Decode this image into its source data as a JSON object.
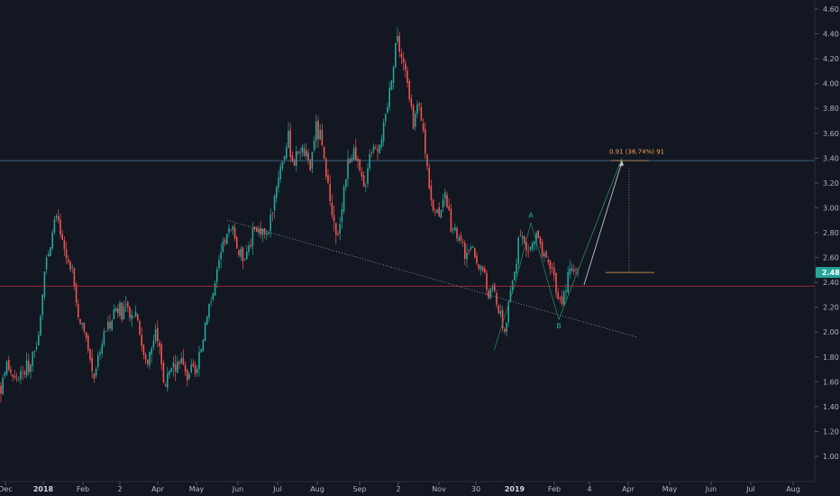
{
  "colors": {
    "background": "#131722",
    "up": "#26a69a",
    "down": "#ef5350",
    "resistance": "#4a7a9c",
    "support": "#b7323a",
    "trendline": "#9aa0ad",
    "projection_up": "#2a8f5a",
    "projection_line": "#c0c3cc",
    "target_text": "#f0a050",
    "price_badge": "#26a69a"
  },
  "chart_data": {
    "type": "candlestick",
    "title": "",
    "xlabel": "",
    "ylabel": "",
    "ylim": [
      0.9,
      4.7
    ],
    "grid": false,
    "y_ticks": [
      "1.00",
      "1.20",
      "1.40",
      "1.60",
      "1.80",
      "2.00",
      "2.20",
      "2.40",
      "2.60",
      "2.80",
      "3.00",
      "3.20",
      "3.40",
      "3.60",
      "3.80",
      "4.00",
      "4.20",
      "4.40",
      "4.60"
    ],
    "x_ticks": [
      {
        "label": "Dec",
        "bold": false
      },
      {
        "label": "2018",
        "bold": true
      },
      {
        "label": "Feb",
        "bold": false
      },
      {
        "label": "2",
        "bold": false
      },
      {
        "label": "Apr",
        "bold": false
      },
      {
        "label": "May",
        "bold": false
      },
      {
        "label": "Jun",
        "bold": false
      },
      {
        "label": "Jul",
        "bold": false
      },
      {
        "label": "Aug",
        "bold": false
      },
      {
        "label": "Sep",
        "bold": false
      },
      {
        "label": "2",
        "bold": false
      },
      {
        "label": "Nov",
        "bold": false
      },
      {
        "label": "30",
        "bold": false
      },
      {
        "label": "2019",
        "bold": true
      },
      {
        "label": "Feb",
        "bold": false
      },
      {
        "label": "4",
        "bold": false
      },
      {
        "label": "Apr",
        "bold": false
      },
      {
        "label": "May",
        "bold": false
      },
      {
        "label": "Jun",
        "bold": false
      },
      {
        "label": "Jul",
        "bold": false
      },
      {
        "label": "Aug",
        "bold": false
      }
    ],
    "last_price": "2.48",
    "price_path": [
      [
        0,
        1.55
      ],
      [
        8,
        1.75
      ],
      [
        16,
        1.62
      ],
      [
        24,
        1.66
      ],
      [
        30,
        1.72
      ],
      [
        38,
        1.78
      ],
      [
        44,
        2.1
      ],
      [
        50,
        2.55
      ],
      [
        56,
        2.65
      ],
      [
        62,
        2.95
      ],
      [
        68,
        2.72
      ],
      [
        74,
        2.6
      ],
      [
        80,
        2.5
      ],
      [
        86,
        2.15
      ],
      [
        92,
        2.0
      ],
      [
        98,
        1.85
      ],
      [
        104,
        1.65
      ],
      [
        110,
        1.85
      ],
      [
        116,
        2.0
      ],
      [
        122,
        2.1
      ],
      [
        128,
        2.2
      ],
      [
        134,
        2.18
      ],
      [
        140,
        2.15
      ],
      [
        146,
        2.12
      ],
      [
        152,
        2.18
      ],
      [
        158,
        1.85
      ],
      [
        164,
        1.75
      ],
      [
        170,
        1.95
      ],
      [
        176,
        2.0
      ],
      [
        182,
        1.55
      ],
      [
        188,
        1.65
      ],
      [
        194,
        1.72
      ],
      [
        200,
        1.8
      ],
      [
        206,
        1.65
      ],
      [
        212,
        1.7
      ],
      [
        218,
        1.65
      ],
      [
        224,
        1.9
      ],
      [
        230,
        2.2
      ],
      [
        236,
        2.3
      ],
      [
        242,
        2.5
      ],
      [
        248,
        2.72
      ],
      [
        254,
        2.8
      ],
      [
        260,
        2.78
      ],
      [
        266,
        2.6
      ],
      [
        272,
        2.62
      ],
      [
        278,
        2.75
      ],
      [
        284,
        2.8
      ],
      [
        290,
        2.85
      ],
      [
        296,
        2.75
      ],
      [
        302,
        3.0
      ],
      [
        308,
        3.25
      ],
      [
        314,
        3.4
      ],
      [
        320,
        3.55
      ],
      [
        326,
        3.35
      ],
      [
        332,
        3.5
      ],
      [
        338,
        3.45
      ],
      [
        344,
        3.3
      ],
      [
        350,
        3.65
      ],
      [
        356,
        3.55
      ],
      [
        362,
        3.2
      ],
      [
        368,
        2.95
      ],
      [
        374,
        2.7
      ],
      [
        380,
        3.1
      ],
      [
        386,
        3.35
      ],
      [
        392,
        3.45
      ],
      [
        398,
        3.3
      ],
      [
        404,
        3.15
      ],
      [
        410,
        3.45
      ],
      [
        416,
        3.5
      ],
      [
        422,
        3.55
      ],
      [
        428,
        3.7
      ],
      [
        434,
        4.05
      ],
      [
        440,
        4.4
      ],
      [
        446,
        4.2
      ],
      [
        452,
        4.0
      ],
      [
        458,
        3.7
      ],
      [
        464,
        3.8
      ],
      [
        470,
        3.6
      ],
      [
        476,
        3.2
      ],
      [
        482,
        2.95
      ],
      [
        488,
        3.0
      ],
      [
        494,
        3.05
      ],
      [
        500,
        2.85
      ],
      [
        506,
        2.8
      ],
      [
        512,
        2.7
      ],
      [
        518,
        2.6
      ],
      [
        524,
        2.65
      ],
      [
        530,
        2.55
      ],
      [
        536,
        2.5
      ],
      [
        542,
        2.3
      ],
      [
        548,
        2.35
      ],
      [
        554,
        2.15
      ],
      [
        560,
        2.0
      ],
      [
        566,
        2.3
      ],
      [
        572,
        2.55
      ],
      [
        578,
        2.8
      ],
      [
        584,
        2.65
      ],
      [
        590,
        2.7
      ],
      [
        596,
        2.78
      ],
      [
        602,
        2.6
      ],
      [
        608,
        2.55
      ],
      [
        614,
        2.5
      ],
      [
        620,
        2.2
      ],
      [
        626,
        2.3
      ],
      [
        632,
        2.5
      ],
      [
        638,
        2.55
      ],
      [
        642,
        2.48
      ]
    ],
    "resistance_level": 3.38,
    "support_level": 2.37,
    "trendline": {
      "from": [
        252,
        2.9
      ],
      "to": [
        706,
        1.96
      ]
    },
    "wave_labels": [
      {
        "text": "A",
        "x": 589,
        "price": 2.92
      },
      {
        "text": "B",
        "x": 620,
        "price": 2.03
      }
    ],
    "target": {
      "label": "0.91 (36.74%) 91",
      "x": 690,
      "price": 3.42,
      "from": [
        648,
        2.38
      ],
      "to": [
        690,
        3.37
      ]
    }
  }
}
